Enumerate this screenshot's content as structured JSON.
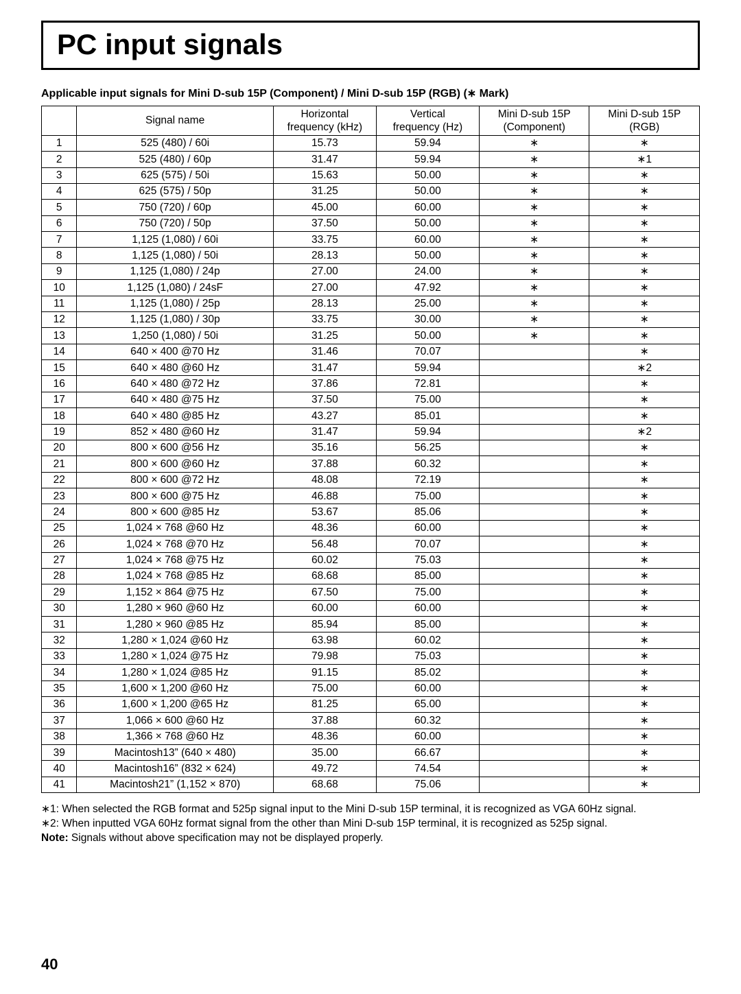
{
  "title": "PC input signals",
  "subtitle": "Applicable input signals for Mini D-sub 15P (Component) / Mini D-sub 15P (RGB) (∗ Mark)",
  "headers": {
    "idx": "",
    "signal": "Signal name",
    "hfreq": "Horizontal\nfrequency (kHz)",
    "vfreq": "Vertical\nfrequency (Hz)",
    "component": "Mini D-sub 15P\n(Component)",
    "rgb": "Mini D-sub 15P\n(RGB)"
  },
  "rows": [
    {
      "idx": "1",
      "sig": "525 (480) / 60i",
      "hf": "15.73",
      "vf": "59.94",
      "comp": "∗",
      "rgb": "∗"
    },
    {
      "idx": "2",
      "sig": "525 (480) / 60p",
      "hf": "31.47",
      "vf": "59.94",
      "comp": "∗",
      "rgb": "∗1"
    },
    {
      "idx": "3",
      "sig": "625 (575) / 50i",
      "hf": "15.63",
      "vf": "50.00",
      "comp": "∗",
      "rgb": "∗"
    },
    {
      "idx": "4",
      "sig": "625 (575) / 50p",
      "hf": "31.25",
      "vf": "50.00",
      "comp": "∗",
      "rgb": "∗"
    },
    {
      "idx": "5",
      "sig": "750 (720) / 60p",
      "hf": "45.00",
      "vf": "60.00",
      "comp": "∗",
      "rgb": "∗"
    },
    {
      "idx": "6",
      "sig": "750 (720) / 50p",
      "hf": "37.50",
      "vf": "50.00",
      "comp": "∗",
      "rgb": "∗"
    },
    {
      "idx": "7",
      "sig": "1,125 (1,080) / 60i",
      "hf": "33.75",
      "vf": "60.00",
      "comp": "∗",
      "rgb": "∗"
    },
    {
      "idx": "8",
      "sig": "1,125 (1,080) / 50i",
      "hf": "28.13",
      "vf": "50.00",
      "comp": "∗",
      "rgb": "∗"
    },
    {
      "idx": "9",
      "sig": "1,125 (1,080) / 24p",
      "hf": "27.00",
      "vf": "24.00",
      "comp": "∗",
      "rgb": "∗"
    },
    {
      "idx": "10",
      "sig": "1,125 (1,080) / 24sF",
      "hf": "27.00",
      "vf": "47.92",
      "comp": "∗",
      "rgb": "∗"
    },
    {
      "idx": "11",
      "sig": "1,125 (1,080) / 25p",
      "hf": "28.13",
      "vf": "25.00",
      "comp": "∗",
      "rgb": "∗"
    },
    {
      "idx": "12",
      "sig": "1,125 (1,080) / 30p",
      "hf": "33.75",
      "vf": "30.00",
      "comp": "∗",
      "rgb": "∗"
    },
    {
      "idx": "13",
      "sig": "1,250 (1,080) / 50i",
      "hf": "31.25",
      "vf": "50.00",
      "comp": "∗",
      "rgb": "∗"
    },
    {
      "idx": "14",
      "sig": "640 × 400 @70 Hz",
      "hf": "31.46",
      "vf": "70.07",
      "comp": "",
      "rgb": "∗"
    },
    {
      "idx": "15",
      "sig": "640 × 480 @60 Hz",
      "hf": "31.47",
      "vf": "59.94",
      "comp": "",
      "rgb": "∗2"
    },
    {
      "idx": "16",
      "sig": "640 × 480 @72 Hz",
      "hf": "37.86",
      "vf": "72.81",
      "comp": "",
      "rgb": "∗"
    },
    {
      "idx": "17",
      "sig": "640 × 480 @75 Hz",
      "hf": "37.50",
      "vf": "75.00",
      "comp": "",
      "rgb": "∗"
    },
    {
      "idx": "18",
      "sig": "640 × 480 @85 Hz",
      "hf": "43.27",
      "vf": "85.01",
      "comp": "",
      "rgb": "∗"
    },
    {
      "idx": "19",
      "sig": "852 × 480 @60 Hz",
      "hf": "31.47",
      "vf": "59.94",
      "comp": "",
      "rgb": "∗2"
    },
    {
      "idx": "20",
      "sig": "800 × 600 @56 Hz",
      "hf": "35.16",
      "vf": "56.25",
      "comp": "",
      "rgb": "∗"
    },
    {
      "idx": "21",
      "sig": "800 × 600 @60 Hz",
      "hf": "37.88",
      "vf": "60.32",
      "comp": "",
      "rgb": "∗"
    },
    {
      "idx": "22",
      "sig": "800 × 600 @72 Hz",
      "hf": "48.08",
      "vf": "72.19",
      "comp": "",
      "rgb": "∗"
    },
    {
      "idx": "23",
      "sig": "800 × 600 @75 Hz",
      "hf": "46.88",
      "vf": "75.00",
      "comp": "",
      "rgb": "∗"
    },
    {
      "idx": "24",
      "sig": "800 × 600 @85 Hz",
      "hf": "53.67",
      "vf": "85.06",
      "comp": "",
      "rgb": "∗"
    },
    {
      "idx": "25",
      "sig": "1,024 × 768 @60 Hz",
      "hf": "48.36",
      "vf": "60.00",
      "comp": "",
      "rgb": "∗"
    },
    {
      "idx": "26",
      "sig": "1,024 × 768 @70 Hz",
      "hf": "56.48",
      "vf": "70.07",
      "comp": "",
      "rgb": "∗"
    },
    {
      "idx": "27",
      "sig": "1,024 × 768 @75 Hz",
      "hf": "60.02",
      "vf": "75.03",
      "comp": "",
      "rgb": "∗"
    },
    {
      "idx": "28",
      "sig": "1,024 × 768 @85 Hz",
      "hf": "68.68",
      "vf": "85.00",
      "comp": "",
      "rgb": "∗"
    },
    {
      "idx": "29",
      "sig": "1,152 × 864 @75 Hz",
      "hf": "67.50",
      "vf": "75.00",
      "comp": "",
      "rgb": "∗"
    },
    {
      "idx": "30",
      "sig": "1,280 × 960 @60 Hz",
      "hf": "60.00",
      "vf": "60.00",
      "comp": "",
      "rgb": "∗"
    },
    {
      "idx": "31",
      "sig": "1,280 × 960 @85 Hz",
      "hf": "85.94",
      "vf": "85.00",
      "comp": "",
      "rgb": "∗"
    },
    {
      "idx": "32",
      "sig": "1,280 × 1,024 @60 Hz",
      "hf": "63.98",
      "vf": "60.02",
      "comp": "",
      "rgb": "∗"
    },
    {
      "idx": "33",
      "sig": "1,280 × 1,024 @75 Hz",
      "hf": "79.98",
      "vf": "75.03",
      "comp": "",
      "rgb": "∗"
    },
    {
      "idx": "34",
      "sig": "1,280 × 1,024 @85 Hz",
      "hf": "91.15",
      "vf": "85.02",
      "comp": "",
      "rgb": "∗"
    },
    {
      "idx": "35",
      "sig": "1,600 × 1,200 @60 Hz",
      "hf": "75.00",
      "vf": "60.00",
      "comp": "",
      "rgb": "∗"
    },
    {
      "idx": "36",
      "sig": "1,600 × 1,200 @65 Hz",
      "hf": "81.25",
      "vf": "65.00",
      "comp": "",
      "rgb": "∗"
    },
    {
      "idx": "37",
      "sig": "1,066 × 600 @60 Hz",
      "hf": "37.88",
      "vf": "60.32",
      "comp": "",
      "rgb": "∗"
    },
    {
      "idx": "38",
      "sig": "1,366 × 768 @60 Hz",
      "hf": "48.36",
      "vf": "60.00",
      "comp": "",
      "rgb": "∗"
    },
    {
      "idx": "39",
      "sig": "Macintosh13” (640 × 480)",
      "hf": "35.00",
      "vf": "66.67",
      "comp": "",
      "rgb": "∗"
    },
    {
      "idx": "40",
      "sig": "Macintosh16” (832 × 624)",
      "hf": "49.72",
      "vf": "74.54",
      "comp": "",
      "rgb": "∗"
    },
    {
      "idx": "41",
      "sig": "Macintosh21” (1,152 × 870)",
      "hf": "68.68",
      "vf": "75.06",
      "comp": "",
      "rgb": "∗"
    }
  ],
  "notes": {
    "n1": "∗1: When selected the RGB format and 525p signal input to the Mini D-sub 15P terminal, it is recognized as VGA 60Hz signal.",
    "n2": "∗2: When inputted VGA 60Hz format signal from the other than Mini D-sub 15P terminal, it is recognized as 525p signal.",
    "note_label": "Note:",
    "note_text": "Signals without above specification may not be displayed properly."
  },
  "pagenum": "40"
}
